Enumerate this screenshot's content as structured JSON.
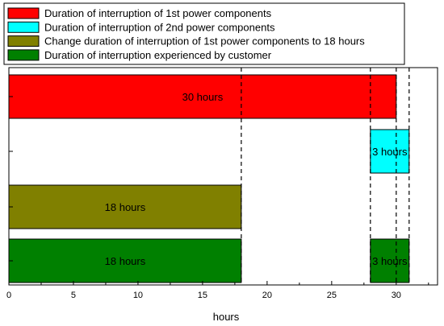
{
  "chart_data": {
    "type": "bar",
    "orientation": "horizontal",
    "xlabel": "hours",
    "ylabel": "",
    "xlim": [
      0,
      33.2
    ],
    "xticks": [
      0,
      5,
      10,
      15,
      20,
      25,
      30
    ],
    "grid": false,
    "legend_position": "top",
    "legend": [
      {
        "label": "Duration of interruption of 1st power components",
        "color": "#ff0000"
      },
      {
        "label": "Duration of interruption of 2nd power components",
        "color": "#00ffff"
      },
      {
        "label": "Change duration of interruption of 1st power components to 18 hours",
        "color": "#808000"
      },
      {
        "label": "Duration of interruption experienced by customer",
        "color": "#008000"
      }
    ],
    "rows": [
      {
        "segments": [
          {
            "start": 0,
            "end": 30,
            "color": "#ff0000",
            "label": "30 hours"
          }
        ]
      },
      {
        "segments": [
          {
            "start": 28,
            "end": 31,
            "color": "#00ffff",
            "label": "3 hours"
          }
        ]
      },
      {
        "segments": [
          {
            "start": 0,
            "end": 18,
            "color": "#808000",
            "label": "18 hours"
          }
        ]
      },
      {
        "segments": [
          {
            "start": 0,
            "end": 18,
            "color": "#008000",
            "label": "18 hours"
          },
          {
            "start": 28,
            "end": 31,
            "color": "#008000",
            "label": "3 hours"
          }
        ]
      }
    ],
    "reference_lines": [
      18,
      28,
      30,
      31
    ]
  }
}
